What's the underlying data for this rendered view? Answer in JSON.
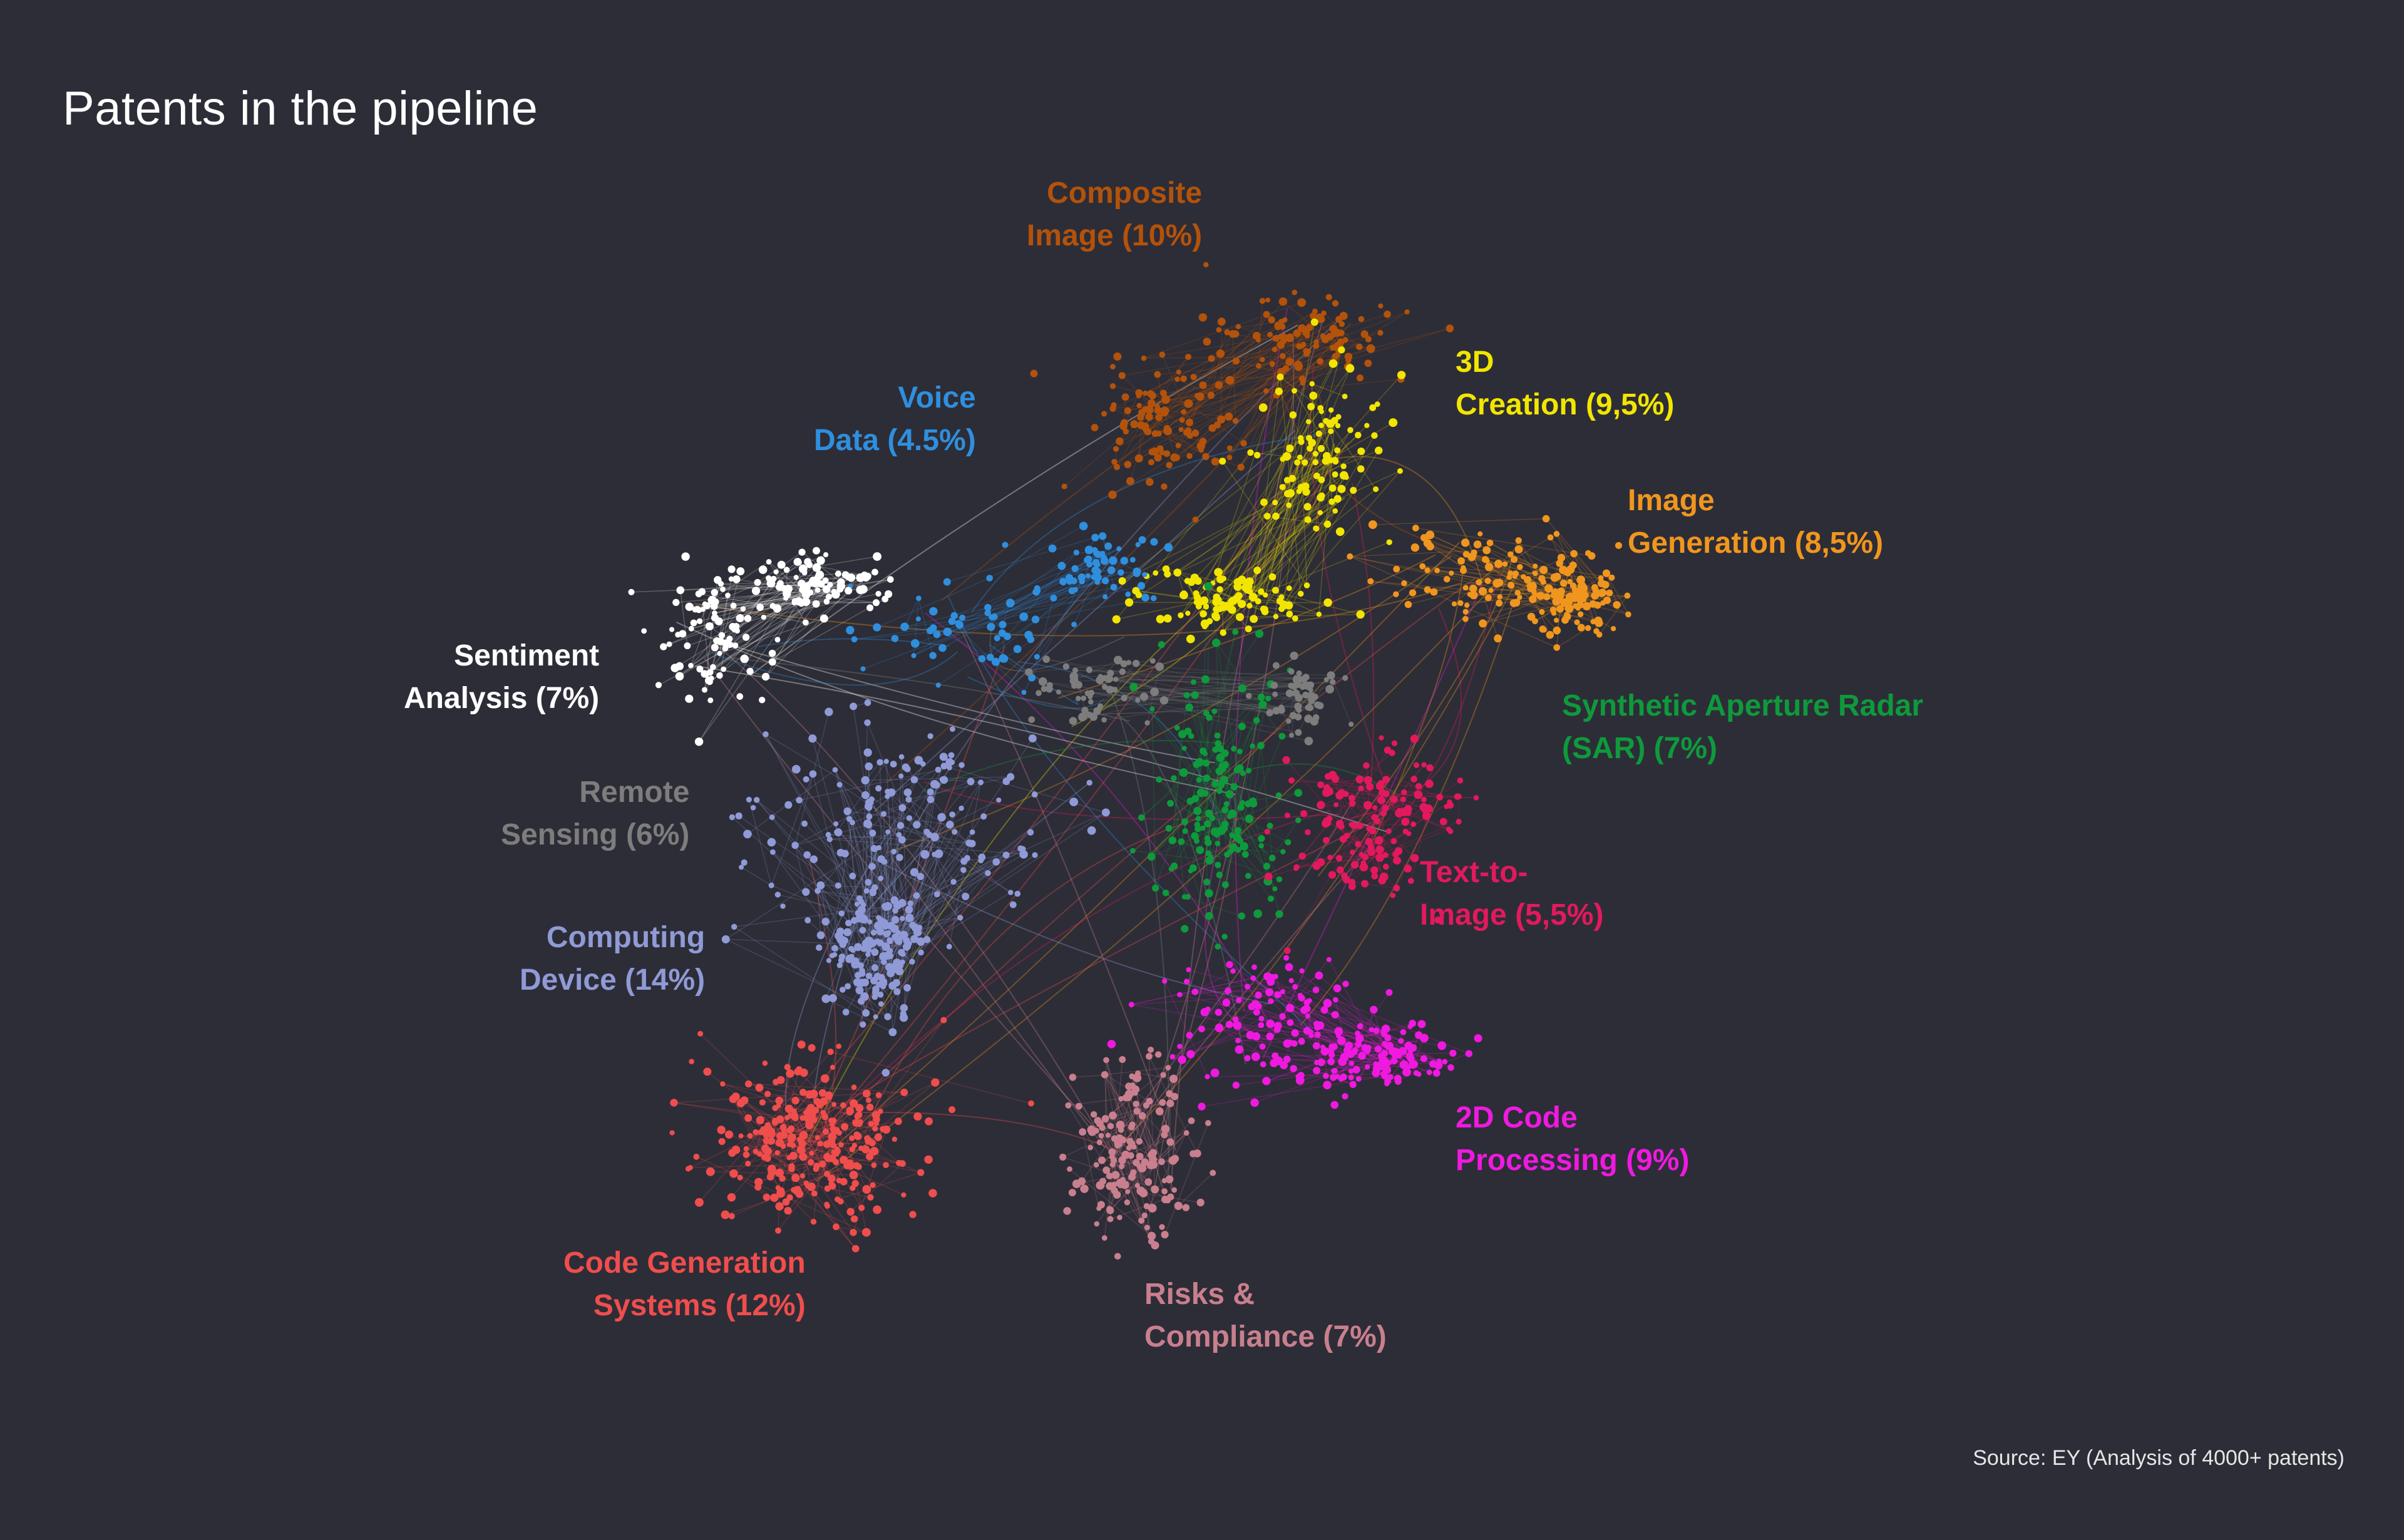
{
  "title": "Patents in the pipeline",
  "source": "Source: EY (Analysis of 4000+ patents)",
  "colors": {
    "background": "#2d2d37",
    "title": "#ffffff"
  },
  "clusters": [
    {
      "id": "composite-image",
      "lines": [
        "Composite",
        "Image (10%)"
      ],
      "name": "Composite Image",
      "share_pct": 10,
      "color": "#b3520b"
    },
    {
      "id": "3d-creation",
      "lines": [
        "3D",
        "Creation (9,5%)"
      ],
      "name": "3D Creation",
      "share_pct": 9.5,
      "color": "#f2e600"
    },
    {
      "id": "voice-data",
      "lines": [
        "Voice",
        "Data (4.5%)"
      ],
      "name": "Voice Data",
      "share_pct": 4.5,
      "color": "#2f8fde"
    },
    {
      "id": "image-generation",
      "lines": [
        "Image",
        "Generation (8,5%)"
      ],
      "name": "Image Generation",
      "share_pct": 8.5,
      "color": "#f0961e"
    },
    {
      "id": "sentiment-analysis",
      "lines": [
        "Sentiment",
        "Analysis (7%)"
      ],
      "name": "Sentiment Analysis",
      "share_pct": 7,
      "color": "#ffffff"
    },
    {
      "id": "sar",
      "lines": [
        "Synthetic Aperture Radar",
        "(SAR) (7%)"
      ],
      "name": "Synthetic Aperture Radar (SAR)",
      "share_pct": 7,
      "color": "#0e9a3c"
    },
    {
      "id": "remote-sensing",
      "lines": [
        "Remote",
        "Sensing (6%)"
      ],
      "name": "Remote Sensing",
      "share_pct": 6,
      "color": "#7d7d7d"
    },
    {
      "id": "text-to-image",
      "lines": [
        "Text-to-",
        "Image  (5,5%)"
      ],
      "name": "Text-to-Image",
      "share_pct": 5.5,
      "color": "#e3195d"
    },
    {
      "id": "computing-device",
      "lines": [
        "Computing",
        "Device (14%)"
      ],
      "name": "Computing Device",
      "share_pct": 14,
      "color": "#8f9ad6"
    },
    {
      "id": "2d-code",
      "lines": [
        "2D Code",
        "Processing (9%)"
      ],
      "name": "2D Code Processing",
      "share_pct": 9,
      "color": "#f019e0"
    },
    {
      "id": "code-generation",
      "lines": [
        "Code Generation",
        "Systems (12%)"
      ],
      "name": "Code Generation Systems",
      "share_pct": 12,
      "color": "#f04d4d"
    },
    {
      "id": "risks-compliance",
      "lines": [
        "Risks &",
        "Compliance (7%)"
      ],
      "name": "Risks & Compliance",
      "share_pct": 7,
      "color": "#c97f8e"
    }
  ]
}
